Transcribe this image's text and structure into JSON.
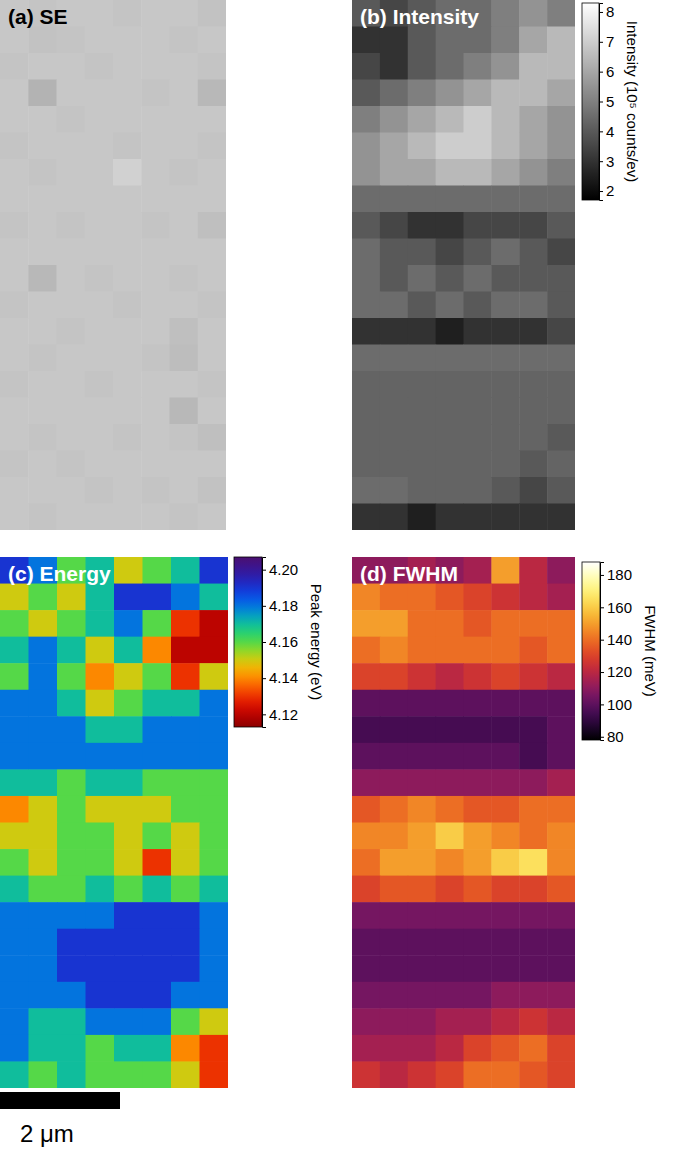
{
  "chart_data": [
    {
      "type": "heatmap",
      "title": "(a) SE",
      "color": "gray",
      "zlim": [
        0,
        1
      ],
      "cells": [
        [
          0.78,
          0.77,
          0.78,
          0.78,
          0.77,
          0.78,
          0.78,
          0.76
        ],
        [
          0.78,
          0.76,
          0.77,
          0.78,
          0.78,
          0.78,
          0.77,
          0.78
        ],
        [
          0.77,
          0.78,
          0.78,
          0.77,
          0.78,
          0.78,
          0.78,
          0.77
        ],
        [
          0.78,
          0.7,
          0.78,
          0.78,
          0.78,
          0.77,
          0.78,
          0.72
        ],
        [
          0.78,
          0.78,
          0.77,
          0.78,
          0.78,
          0.78,
          0.78,
          0.78
        ],
        [
          0.77,
          0.78,
          0.78,
          0.78,
          0.77,
          0.78,
          0.78,
          0.77
        ],
        [
          0.78,
          0.77,
          0.78,
          0.78,
          0.82,
          0.78,
          0.77,
          0.78
        ],
        [
          0.78,
          0.78,
          0.78,
          0.78,
          0.78,
          0.78,
          0.78,
          0.78
        ],
        [
          0.77,
          0.78,
          0.77,
          0.78,
          0.78,
          0.77,
          0.78,
          0.75
        ],
        [
          0.78,
          0.78,
          0.78,
          0.78,
          0.78,
          0.78,
          0.78,
          0.78
        ],
        [
          0.78,
          0.72,
          0.78,
          0.77,
          0.78,
          0.78,
          0.77,
          0.78
        ],
        [
          0.77,
          0.78,
          0.78,
          0.78,
          0.77,
          0.78,
          0.78,
          0.77
        ],
        [
          0.78,
          0.78,
          0.77,
          0.78,
          0.78,
          0.78,
          0.75,
          0.78
        ],
        [
          0.78,
          0.77,
          0.78,
          0.78,
          0.78,
          0.77,
          0.74,
          0.78
        ],
        [
          0.77,
          0.78,
          0.78,
          0.77,
          0.78,
          0.78,
          0.78,
          0.77
        ],
        [
          0.78,
          0.78,
          0.78,
          0.78,
          0.78,
          0.78,
          0.72,
          0.78
        ],
        [
          0.78,
          0.77,
          0.78,
          0.78,
          0.77,
          0.78,
          0.77,
          0.75
        ],
        [
          0.77,
          0.78,
          0.77,
          0.78,
          0.78,
          0.78,
          0.78,
          0.78
        ],
        [
          0.78,
          0.78,
          0.78,
          0.77,
          0.78,
          0.77,
          0.78,
          0.76
        ],
        [
          0.78,
          0.77,
          0.78,
          0.78,
          0.78,
          0.78,
          0.77,
          0.78
        ]
      ]
    },
    {
      "type": "heatmap",
      "title": "(b) Intensity",
      "color": "gray",
      "zlabel": "Intensity (10⁵ counts/ev)",
      "zlim": [
        1.7,
        8.3
      ],
      "zticks": [
        2,
        3,
        4,
        5,
        6,
        7,
        8
      ],
      "cells": [
        [
          4,
          3.5,
          4,
          4.5,
          4.5,
          5,
          5.5,
          5
        ],
        [
          3,
          3,
          4,
          4.5,
          4.5,
          5,
          6,
          6.5
        ],
        [
          3.5,
          3,
          4,
          4.5,
          5,
          5.5,
          6.5,
          6.5
        ],
        [
          4,
          4.5,
          5,
          5.5,
          6,
          6.5,
          6.5,
          6
        ],
        [
          5,
          5.5,
          6,
          6.5,
          7,
          6.5,
          6,
          5.5
        ],
        [
          5.5,
          6,
          6.5,
          7,
          7,
          6.5,
          6,
          5.5
        ],
        [
          5.5,
          6,
          6,
          6.5,
          6.5,
          6,
          5.5,
          5
        ],
        [
          4.5,
          4.5,
          4.5,
          4.5,
          4.5,
          4.5,
          4.5,
          4.5
        ],
        [
          4,
          3.5,
          3,
          3,
          3.5,
          3.5,
          3.5,
          4
        ],
        [
          4.5,
          4,
          4,
          3.5,
          4,
          4.5,
          4,
          3.5
        ],
        [
          4.5,
          4,
          4.5,
          4,
          4.5,
          4,
          4,
          4
        ],
        [
          4.5,
          4.5,
          4,
          4.5,
          4,
          4.5,
          4.5,
          4
        ],
        [
          3,
          3,
          3,
          2.5,
          3,
          3,
          3,
          3.5
        ],
        [
          4.5,
          4.5,
          4.5,
          4.5,
          4.5,
          4.5,
          4.5,
          4.5
        ],
        [
          4.3,
          4.3,
          4.3,
          4.3,
          4.3,
          4.3,
          4.3,
          4.3
        ],
        [
          4.3,
          4.3,
          4.3,
          4.3,
          4.3,
          4.3,
          4.3,
          4.3
        ],
        [
          4.3,
          4.3,
          4.3,
          4.3,
          4.3,
          4.3,
          4.3,
          4
        ],
        [
          4.3,
          4.3,
          4.3,
          4.3,
          4.3,
          4.3,
          4,
          4.3
        ],
        [
          4.5,
          4.5,
          4.3,
          4.3,
          4.3,
          4,
          3.5,
          4
        ],
        [
          3,
          3,
          2.5,
          3,
          3,
          3,
          3,
          3
        ]
      ]
    },
    {
      "type": "heatmap",
      "title": "(c) Energy",
      "color": "rainbow",
      "zlabel": "Peak energy (eV)",
      "zlim": [
        4.113,
        4.207
      ],
      "zticks": [
        4.12,
        4.14,
        4.16,
        4.18,
        {
          "value": 4.2,
          "label": "4.20"
        }
      ],
      "cells": [
        [
          4.19,
          4.18,
          4.16,
          4.17,
          4.15,
          4.16,
          4.17,
          4.19
        ],
        [
          4.15,
          4.16,
          4.15,
          4.17,
          4.19,
          4.19,
          4.18,
          4.17
        ],
        [
          4.16,
          4.15,
          4.16,
          4.17,
          4.18,
          4.16,
          4.13,
          4.12
        ],
        [
          4.17,
          4.18,
          4.17,
          4.15,
          4.17,
          4.14,
          4.12,
          4.12
        ],
        [
          4.16,
          4.18,
          4.16,
          4.14,
          4.15,
          4.16,
          4.13,
          4.15
        ],
        [
          4.18,
          4.18,
          4.17,
          4.15,
          4.16,
          4.17,
          4.17,
          4.18
        ],
        [
          4.18,
          4.18,
          4.18,
          4.17,
          4.17,
          4.18,
          4.18,
          4.18
        ],
        [
          4.18,
          4.18,
          4.18,
          4.18,
          4.18,
          4.18,
          4.18,
          4.18
        ],
        [
          4.17,
          4.17,
          4.16,
          4.17,
          4.17,
          4.16,
          4.16,
          4.16
        ],
        [
          4.14,
          4.15,
          4.16,
          4.15,
          4.15,
          4.15,
          4.16,
          4.16
        ],
        [
          4.15,
          4.15,
          4.16,
          4.16,
          4.15,
          4.16,
          4.15,
          4.16
        ],
        [
          4.16,
          4.15,
          4.16,
          4.16,
          4.15,
          4.13,
          4.15,
          4.16
        ],
        [
          4.17,
          4.16,
          4.16,
          4.17,
          4.16,
          4.17,
          4.16,
          4.17
        ],
        [
          4.18,
          4.18,
          4.18,
          4.18,
          4.19,
          4.19,
          4.19,
          4.18
        ],
        [
          4.18,
          4.18,
          4.19,
          4.19,
          4.19,
          4.19,
          4.19,
          4.18
        ],
        [
          4.18,
          4.18,
          4.19,
          4.19,
          4.19,
          4.19,
          4.19,
          4.18
        ],
        [
          4.18,
          4.18,
          4.18,
          4.19,
          4.19,
          4.19,
          4.18,
          4.18
        ],
        [
          4.18,
          4.17,
          4.17,
          4.18,
          4.18,
          4.18,
          4.16,
          4.15
        ],
        [
          4.18,
          4.17,
          4.17,
          4.16,
          4.17,
          4.17,
          4.14,
          4.13
        ],
        [
          4.17,
          4.16,
          4.17,
          4.16,
          4.16,
          4.16,
          4.15,
          4.13
        ]
      ]
    },
    {
      "type": "heatmap",
      "title": "(d) FWHM",
      "color": "hot",
      "zlabel": "FWHM (meV)",
      "zlim": [
        78,
        188
      ],
      "zticks": [
        80,
        100,
        120,
        140,
        160,
        180
      ],
      "cells": [
        [
          110,
          110,
          115,
          110,
          115,
          150,
          120,
          110
        ],
        [
          145,
          140,
          140,
          135,
          130,
          125,
          120,
          115
        ],
        [
          150,
          150,
          140,
          140,
          135,
          140,
          140,
          140
        ],
        [
          140,
          145,
          140,
          140,
          140,
          140,
          135,
          140
        ],
        [
          130,
          130,
          125,
          120,
          125,
          130,
          125,
          120
        ],
        [
          100,
          100,
          100,
          100,
          100,
          100,
          100,
          100
        ],
        [
          95,
          95,
          95,
          95,
          95,
          95,
          95,
          100
        ],
        [
          100,
          100,
          100,
          100,
          100,
          100,
          95,
          100
        ],
        [
          110,
          110,
          110,
          110,
          110,
          110,
          110,
          115
        ],
        [
          135,
          140,
          145,
          140,
          135,
          135,
          140,
          140
        ],
        [
          145,
          145,
          150,
          160,
          150,
          145,
          140,
          145
        ],
        [
          140,
          150,
          150,
          145,
          150,
          160,
          165,
          145
        ],
        [
          130,
          135,
          135,
          130,
          135,
          130,
          130,
          135
        ],
        [
          105,
          105,
          105,
          105,
          105,
          105,
          105,
          105
        ],
        [
          100,
          100,
          100,
          100,
          100,
          100,
          100,
          100
        ],
        [
          100,
          100,
          100,
          100,
          100,
          100,
          100,
          100
        ],
        [
          105,
          105,
          105,
          105,
          105,
          110,
          110,
          110
        ],
        [
          110,
          110,
          110,
          115,
          115,
          120,
          125,
          120
        ],
        [
          115,
          115,
          115,
          120,
          130,
          135,
          140,
          130
        ],
        [
          125,
          120,
          125,
          130,
          140,
          140,
          135,
          130
        ]
      ]
    }
  ],
  "scale_bar": {
    "label": "2 μm"
  }
}
